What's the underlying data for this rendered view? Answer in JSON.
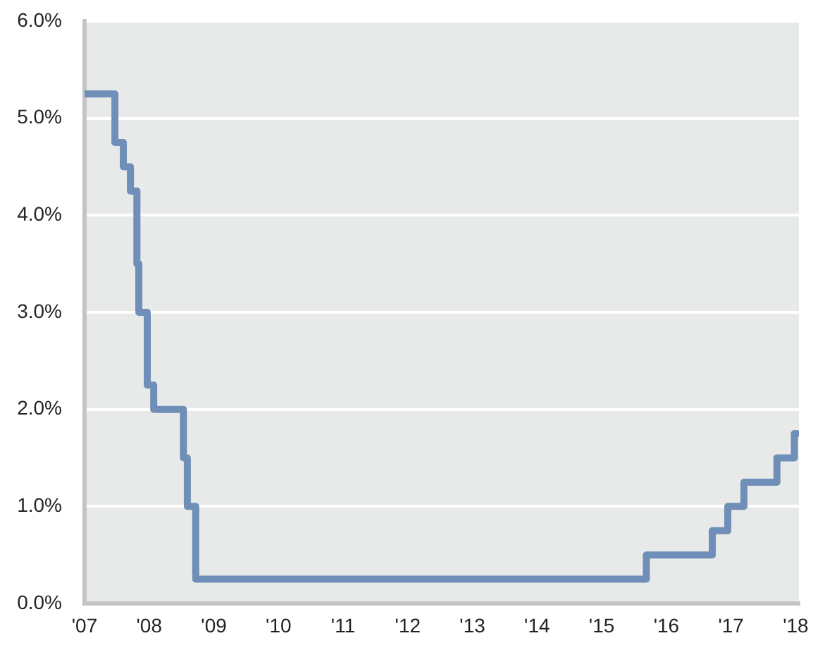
{
  "chart_data": {
    "type": "step",
    "x": [
      2007,
      2007.47,
      2007.6,
      2007.71,
      2007.81,
      2007.84,
      2007.97,
      2008.07,
      2008.53,
      2008.59,
      2008.72,
      2015.69,
      2016.71,
      2016.95,
      2017.2,
      2017.71,
      2017.98,
      2018.02
    ],
    "values": [
      5.25,
      4.75,
      4.5,
      4.25,
      3.5,
      3.0,
      2.25,
      2.0,
      1.5,
      1.0,
      0.25,
      0.5,
      0.75,
      1.0,
      1.25,
      1.5,
      1.75,
      1.75
    ],
    "color": "#6f8fb8",
    "xlim": [
      2007,
      2018.05
    ],
    "xticks": [
      {
        "value": 2007,
        "label": "'07"
      },
      {
        "value": 2008,
        "label": "'08"
      },
      {
        "value": 2009,
        "label": "'09"
      },
      {
        "value": 2010,
        "label": "'10"
      },
      {
        "value": 2011,
        "label": "'11"
      },
      {
        "value": 2012,
        "label": "'12"
      },
      {
        "value": 2013,
        "label": "'13"
      },
      {
        "value": 2014,
        "label": "'14"
      },
      {
        "value": 2015,
        "label": "'15"
      },
      {
        "value": 2016,
        "label": "'16"
      },
      {
        "value": 2017,
        "label": "'17"
      },
      {
        "value": 2018,
        "label": "'18"
      }
    ],
    "ylim": [
      0,
      6
    ],
    "yticks": [
      {
        "value": 0,
        "label": "0.0%"
      },
      {
        "value": 1,
        "label": "1.0%"
      },
      {
        "value": 2,
        "label": "2.0%"
      },
      {
        "value": 3,
        "label": "3.0%"
      },
      {
        "value": 4,
        "label": "4.0%"
      },
      {
        "value": 5,
        "label": "5.0%"
      },
      {
        "value": 6,
        "label": "6.0%"
      }
    ],
    "grid": "y"
  }
}
